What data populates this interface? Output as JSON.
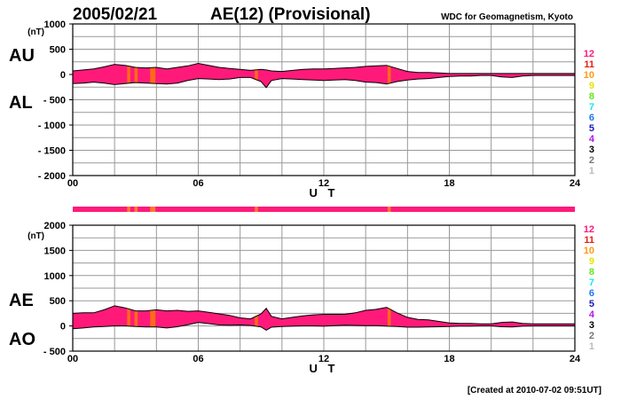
{
  "header": {
    "date": "2005/02/21",
    "title": "AE(12) (Provisional)",
    "source": "WDC for Geomagnetism, Kyoto"
  },
  "footer": {
    "created": "[Created at 2010-07-02 09:51UT]"
  },
  "colors": {
    "fill": "#ff1a7a",
    "gap": "#ff6a1a",
    "bar": "#ff1a7a",
    "bar_gap": "#ff7a30",
    "outline": "#000000"
  },
  "legend": [
    {
      "label": "12",
      "color": "#ff1a7a"
    },
    {
      "label": "11",
      "color": "#e0201a"
    },
    {
      "label": "10",
      "color": "#ff9a1a"
    },
    {
      "label": "9",
      "color": "#e6e600"
    },
    {
      "label": "8",
      "color": "#66e61a"
    },
    {
      "label": "7",
      "color": "#1ae6e6"
    },
    {
      "label": "6",
      "color": "#1a7ae6"
    },
    {
      "label": "5",
      "color": "#1a1ab0"
    },
    {
      "label": "4",
      "color": "#b01ae6"
    },
    {
      "label": "3",
      "color": "#000000"
    },
    {
      "label": "2",
      "color": "#777777"
    },
    {
      "label": "1",
      "color": "#bbbbbb"
    }
  ],
  "chart_data": [
    {
      "type": "area",
      "series_labels": [
        "AU",
        "AL"
      ],
      "unit": "(nT)",
      "xlabel": "U T",
      "xlim": [
        0,
        24
      ],
      "ylim": [
        -2000,
        1000
      ],
      "yticks": [
        1000,
        500,
        0,
        -500,
        -1000,
        -1500,
        -2000
      ],
      "ytick_labels": [
        "1000",
        "500",
        "0",
        "- 500",
        "- 1000",
        "- 1500",
        "- 2000"
      ],
      "xticks": [
        0,
        6,
        12,
        18,
        24
      ],
      "xtick_labels": [
        "00",
        "06",
        "12",
        "18",
        "24"
      ],
      "x": [
        0,
        0.5,
        1,
        1.5,
        2,
        2.5,
        3,
        3.5,
        4,
        4.5,
        5,
        5.5,
        6,
        6.5,
        7,
        7.5,
        8,
        8.5,
        9,
        9.25,
        9.5,
        10,
        10.5,
        11,
        11.5,
        12,
        12.5,
        13,
        13.5,
        14,
        14.5,
        15,
        15.5,
        16,
        16.5,
        17,
        17.5,
        18,
        18.5,
        19,
        19.5,
        20,
        20.5,
        21,
        21.5,
        22,
        22.5,
        23,
        23.5,
        24
      ],
      "AU": [
        70,
        90,
        110,
        150,
        200,
        180,
        140,
        130,
        140,
        110,
        140,
        170,
        220,
        180,
        140,
        120,
        100,
        80,
        100,
        90,
        70,
        60,
        80,
        100,
        110,
        110,
        120,
        130,
        140,
        160,
        170,
        180,
        120,
        60,
        40,
        40,
        30,
        20,
        20,
        20,
        20,
        20,
        20,
        20,
        20,
        20,
        20,
        20,
        20,
        20
      ],
      "AL": [
        -180,
        -170,
        -150,
        -170,
        -200,
        -180,
        -160,
        -170,
        -180,
        -190,
        -170,
        -120,
        -80,
        -90,
        -100,
        -90,
        -60,
        -60,
        -140,
        -260,
        -120,
        -80,
        -90,
        -100,
        -110,
        -120,
        -110,
        -100,
        -120,
        -150,
        -160,
        -190,
        -140,
        -110,
        -90,
        -80,
        -60,
        -40,
        -30,
        -30,
        -20,
        -20,
        -50,
        -60,
        -30,
        -20,
        -20,
        -20,
        -20,
        -20
      ],
      "orange_intervals": [
        [
          2.6,
          2.75
        ],
        [
          2.95,
          3.1
        ],
        [
          3.7,
          3.95
        ],
        [
          8.7,
          8.85
        ],
        [
          15.05,
          15.2
        ]
      ]
    },
    {
      "type": "area",
      "series_labels": [
        "AE",
        "AO"
      ],
      "unit": "(nT)",
      "xlabel": "U T",
      "xlim": [
        0,
        24
      ],
      "ylim": [
        -500,
        2000
      ],
      "yticks": [
        2000,
        1500,
        1000,
        500,
        0,
        -500
      ],
      "ytick_labels": [
        "2000",
        "1500",
        "1000",
        "500",
        "0",
        "- 500"
      ],
      "xticks": [
        0,
        6,
        12,
        18,
        24
      ],
      "xtick_labels": [
        "00",
        "06",
        "12",
        "18",
        "24"
      ],
      "x": [
        0,
        0.5,
        1,
        1.5,
        2,
        2.5,
        3,
        3.5,
        4,
        4.5,
        5,
        5.5,
        6,
        6.5,
        7,
        7.5,
        8,
        8.5,
        9,
        9.25,
        9.5,
        10,
        10.5,
        11,
        11.5,
        12,
        12.5,
        13,
        13.5,
        14,
        14.5,
        15,
        15.5,
        16,
        16.5,
        17,
        17.5,
        18,
        18.5,
        19,
        19.5,
        20,
        20.5,
        21,
        21.5,
        22,
        22.5,
        23,
        23.5,
        24
      ],
      "AE": [
        250,
        260,
        260,
        320,
        400,
        360,
        300,
        300,
        320,
        300,
        310,
        290,
        300,
        270,
        240,
        210,
        160,
        140,
        240,
        350,
        190,
        140,
        170,
        200,
        220,
        230,
        230,
        230,
        260,
        310,
        330,
        370,
        260,
        170,
        130,
        120,
        90,
        60,
        50,
        50,
        40,
        40,
        70,
        80,
        50,
        40,
        40,
        40,
        40,
        40
      ],
      "AO": [
        -55,
        -40,
        -20,
        -10,
        0,
        0,
        -10,
        -20,
        -20,
        -40,
        -15,
        25,
        70,
        45,
        20,
        15,
        20,
        10,
        -20,
        -85,
        -25,
        -10,
        -5,
        0,
        0,
        -5,
        5,
        15,
        10,
        5,
        5,
        -5,
        -10,
        -25,
        -25,
        -20,
        -15,
        -10,
        -5,
        -5,
        0,
        0,
        -15,
        -20,
        -5,
        0,
        0,
        0,
        0,
        0
      ],
      "orange_intervals": [
        [
          2.6,
          2.75
        ],
        [
          2.95,
          3.1
        ],
        [
          3.7,
          3.95
        ],
        [
          8.7,
          8.85
        ],
        [
          15.05,
          15.2
        ]
      ]
    }
  ]
}
